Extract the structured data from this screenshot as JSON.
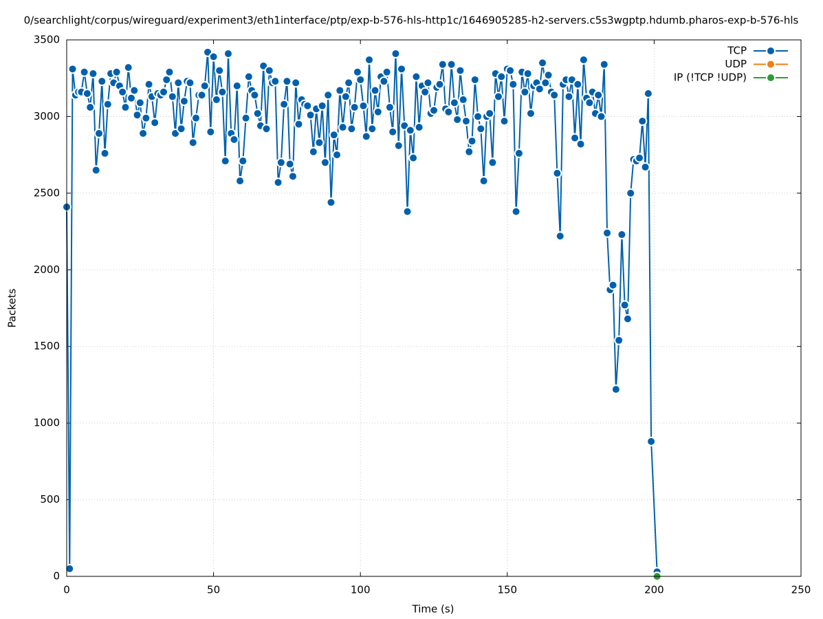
{
  "chart_data": {
    "type": "line",
    "title": "0/searchlight/corpus/wireguard/experiment3/eth1interface/ptp/exp-b-576-hls-http1c/1646905285-h2-servers.c5s3wgptp.hdumb.pharos-exp-b-576-hls",
    "x_label": "Time (s)",
    "y_label": "Packets",
    "xlim": [
      0,
      250
    ],
    "ylim": [
      0,
      3500
    ],
    "xticks": [
      0,
      50,
      100,
      150,
      200,
      250
    ],
    "yticks": [
      0,
      500,
      1000,
      1500,
      2000,
      2500,
      3000,
      3500
    ],
    "grid": true,
    "legend": "top-right",
    "series": [
      {
        "name": "TCP",
        "color": "#0060ad",
        "x": [
          0,
          1,
          2,
          3,
          4,
          5,
          6,
          7,
          8,
          9,
          10,
          11,
          12,
          13,
          14,
          15,
          16,
          17,
          18,
          19,
          20,
          21,
          22,
          23,
          24,
          25,
          26,
          27,
          28,
          29,
          30,
          31,
          32,
          33,
          34,
          35,
          36,
          37,
          38,
          39,
          40,
          41,
          42,
          43,
          44,
          45,
          46,
          47,
          48,
          49,
          50,
          51,
          52,
          53,
          54,
          55,
          56,
          57,
          58,
          59,
          60,
          61,
          62,
          63,
          64,
          65,
          66,
          67,
          68,
          69,
          70,
          71,
          72,
          73,
          74,
          75,
          76,
          77,
          78,
          79,
          80,
          81,
          82,
          83,
          84,
          85,
          86,
          87,
          88,
          89,
          90,
          91,
          92,
          93,
          94,
          95,
          96,
          97,
          98,
          99,
          100,
          101,
          102,
          103,
          104,
          105,
          106,
          107,
          108,
          109,
          110,
          111,
          112,
          113,
          114,
          115,
          116,
          117,
          118,
          119,
          120,
          121,
          122,
          123,
          124,
          125,
          126,
          127,
          128,
          129,
          130,
          131,
          132,
          133,
          134,
          135,
          136,
          137,
          138,
          139,
          140,
          141,
          142,
          143,
          144,
          145,
          146,
          147,
          148,
          149,
          150,
          151,
          152,
          153,
          154,
          155,
          156,
          157,
          158,
          159,
          160,
          161,
          162,
          163,
          164,
          165,
          166,
          167,
          168,
          169,
          170,
          171,
          172,
          173,
          174,
          175,
          176,
          177,
          178,
          179,
          180,
          181,
          182,
          183,
          184,
          185,
          186,
          187,
          188,
          189,
          190,
          191,
          192,
          193,
          194,
          195,
          196,
          197,
          198,
          199,
          201
        ],
        "values": [
          2410,
          50,
          3310,
          3140,
          3160,
          3160,
          3290,
          3150,
          3060,
          3280,
          2650,
          2890,
          3230,
          2760,
          3080,
          3280,
          3220,
          3290,
          3200,
          3160,
          3060,
          3320,
          3120,
          3170,
          3010,
          3090,
          2890,
          2990,
          3210,
          3130,
          2960,
          3150,
          3140,
          3160,
          3240,
          3290,
          3130,
          2890,
          3220,
          2920,
          3100,
          3230,
          3220,
          2830,
          2990,
          3140,
          3140,
          3200,
          3420,
          2900,
          3390,
          3110,
          3300,
          3160,
          2710,
          3410,
          2890,
          2850,
          3200,
          2580,
          2710,
          2990,
          3260,
          3170,
          3140,
          3020,
          2940,
          3330,
          2920,
          3300,
          3220,
          3230,
          2570,
          2700,
          3080,
          3230,
          2690,
          2610,
          3220,
          2950,
          3110,
          3080,
          3070,
          3010,
          2770,
          3050,
          2830,
          3070,
          2700,
          3140,
          2440,
          2880,
          2750,
          3170,
          2930,
          3130,
          3220,
          2920,
          3060,
          3290,
          3240,
          3070,
          2870,
          3370,
          2920,
          3170,
          3030,
          3260,
          3230,
          3290,
          3060,
          2900,
          3410,
          2810,
          3310,
          2940,
          2380,
          2910,
          2730,
          3260,
          2930,
          3200,
          3160,
          3220,
          3020,
          3040,
          3190,
          3210,
          3340,
          3050,
          3030,
          3340,
          3090,
          2980,
          3300,
          3110,
          2970,
          2770,
          2840,
          3240,
          3000,
          2920,
          2580,
          3000,
          3020,
          2700,
          3280,
          3130,
          3260,
          2970,
          3310,
          3300,
          3210,
          2380,
          2760,
          3290,
          3160,
          3280,
          3020,
          3200,
          3220,
          3180,
          3350,
          3220,
          3270,
          3160,
          3140,
          2630,
          2220,
          3210,
          3240,
          3130,
          3240,
          2860,
          3210,
          2820,
          3370,
          3120,
          3090,
          3160,
          3020,
          3140,
          3000,
          3340,
          2240,
          1870,
          1900,
          1220,
          1540,
          2230,
          1770,
          1680,
          2500,
          2720,
          2710,
          2730,
          2970,
          2670,
          3150,
          880,
          30
        ]
      },
      {
        "name": "UDP",
        "color": "#f07f14",
        "x": [],
        "values": []
      },
      {
        "name": "IP (!TCP  !UDP)",
        "color": "#2a9d36",
        "x": [
          201
        ],
        "values": [
          0
        ]
      }
    ]
  }
}
